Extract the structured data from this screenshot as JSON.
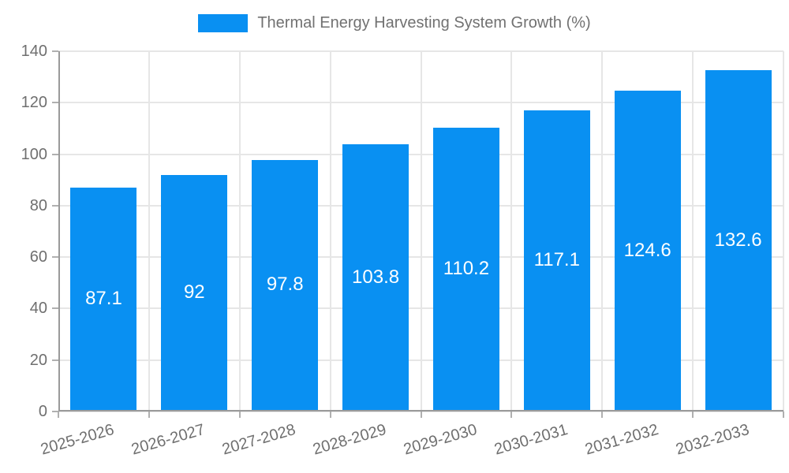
{
  "chart_data": {
    "type": "bar",
    "title": "Thermal Energy Harvesting System Growth (%)",
    "categories": [
      "2025-2026",
      "2026-2027",
      "2027-2028",
      "2028-2029",
      "2029-2030",
      "2030-2031",
      "2031-2032",
      "2032-2033"
    ],
    "values": [
      87.1,
      92,
      97.8,
      103.8,
      110.2,
      117.1,
      124.6,
      132.6
    ],
    "bar_value_labels": [
      "87.1",
      "92",
      "97.8",
      "103.8",
      "110.2",
      "117.1",
      "124.6",
      "132.6"
    ],
    "xlabel": "",
    "ylabel": "",
    "ylim": [
      0,
      140
    ],
    "yticks": [
      0,
      20,
      40,
      60,
      80,
      100,
      120,
      140
    ],
    "grid": true,
    "legend_position": "top-center",
    "colors": {
      "bar": "#0990f2",
      "grid": "#e6e6e6",
      "axis_line": "#9a9a9a",
      "tick": "#b0b0b0",
      "axis_text": "#6f6f6f",
      "title_text": "#717171",
      "value_label": "#ffffff",
      "background": "#ffffff"
    }
  }
}
